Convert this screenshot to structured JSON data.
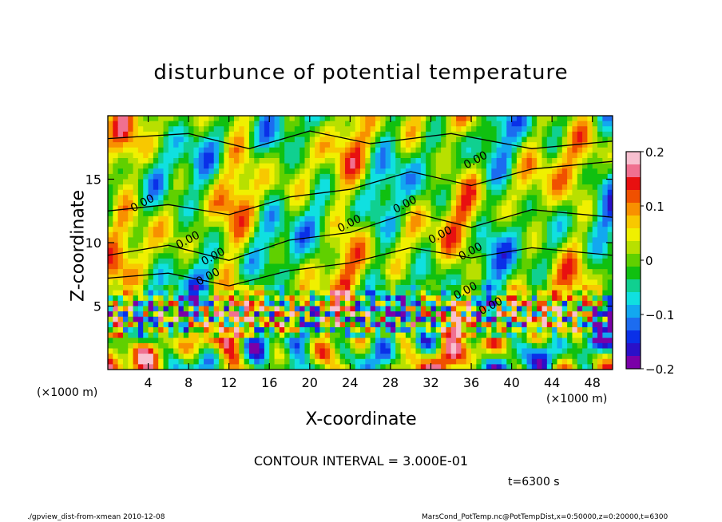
{
  "chart_data": {
    "type": "heatmap",
    "title": "disturbunce of potential temperature",
    "xlabel": "X-coordinate",
    "ylabel": "Z-coordinate",
    "x_unit_label": "(×1000 m)",
    "x_ticks": [
      4,
      8,
      12,
      16,
      20,
      24,
      28,
      32,
      36,
      40,
      44,
      48
    ],
    "y_ticks": [
      5,
      10,
      15
    ],
    "xlim": [
      0,
      50
    ],
    "ylim": [
      0,
      20
    ],
    "colorbar": {
      "ticks": [
        "0.2",
        "0.1",
        "0",
        "−0.1",
        "−0.2"
      ],
      "range": [
        -0.2,
        0.2
      ],
      "colors": [
        "#7a00a8",
        "#2a10c8",
        "#0a30e8",
        "#1c6cf0",
        "#12a8f0",
        "#10e0e0",
        "#10d090",
        "#10c010",
        "#60d000",
        "#b8e000",
        "#f0f000",
        "#f8c800",
        "#f89000",
        "#f05000",
        "#e81010",
        "#f07090",
        "#f8c0d0"
      ]
    },
    "contour_labels": [
      "0.00",
      "0.00",
      "0.00",
      "0.00",
      "0.00",
      "0.00",
      "0.00",
      "0.00",
      "0.00",
      "0.00",
      "0.00"
    ],
    "contour_interval_text": "CONTOUR INTERVAL = 3.000E-01",
    "time_text": "t=6300 s",
    "footer_left": "./gpview_dist-from-xmean  2010-12-08",
    "footer_right": "MarsCond_PotTemp.nc@PotTempDist,x=0:50000,z=0:20000,t=6300"
  }
}
